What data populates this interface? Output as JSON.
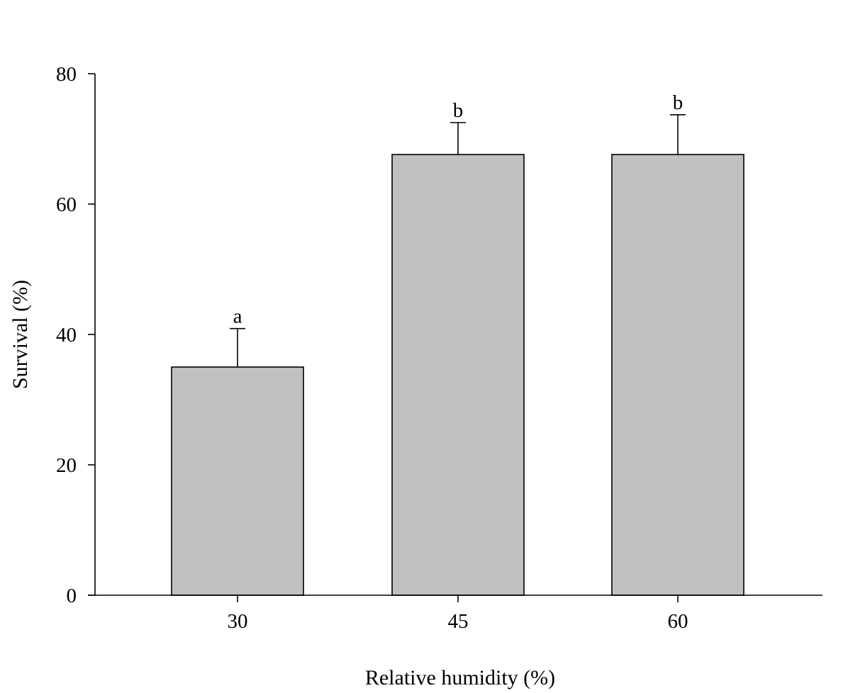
{
  "chart_data": {
    "type": "bar",
    "title": "",
    "xlabel": "Relative humidity (%)",
    "ylabel": "Survival (%)",
    "categories": [
      "30",
      "45",
      "60"
    ],
    "series": [
      {
        "values": [
          35.0,
          67.6,
          67.6
        ],
        "error": [
          5.9,
          4.9,
          6.1
        ],
        "labels": [
          "a",
          "b",
          "b"
        ]
      }
    ],
    "ylim": [
      0,
      80
    ],
    "yticks": [
      "0",
      "20",
      "40",
      "60",
      "80"
    ],
    "grid": false,
    "legend": "none",
    "colors": {
      "bar_fill": "#c0c0c0",
      "bar_stroke": "#000000",
      "axis": "#000000"
    }
  }
}
